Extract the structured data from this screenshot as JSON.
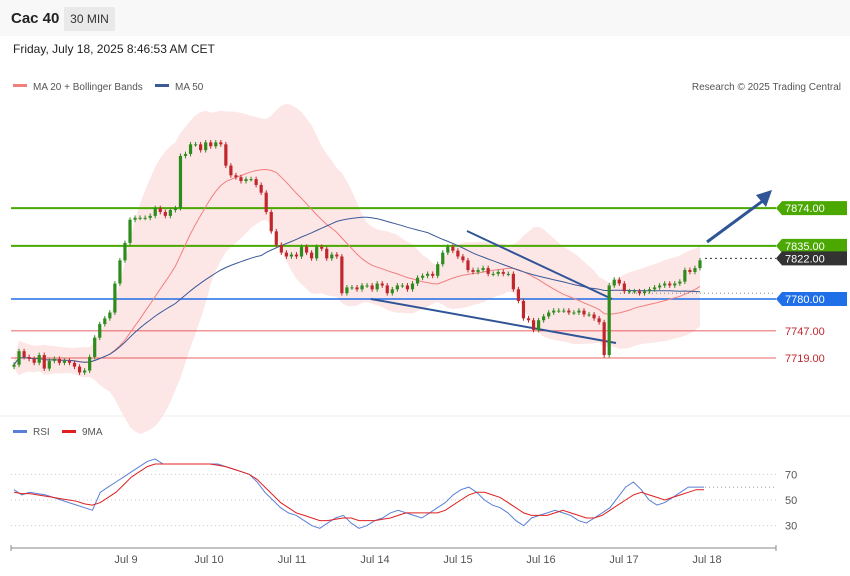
{
  "header": {
    "instrument": "Cac 40",
    "interval": "30 MIN",
    "datetime": "Friday, July 18, 2025 8:46:53 AM CET"
  },
  "legend": {
    "ma20": "MA 20 + Bollinger Bands",
    "ma50": "MA 50",
    "rsi": "RSI",
    "rsi_ma": "9MA",
    "credit": "Research © 2025 Trading Central"
  },
  "colors": {
    "ma20": "#f08080",
    "ma50": "#3a5a98",
    "bollinger_fill": "#fde2e2",
    "green_level": "#4aa800",
    "blue_level": "#1e6fe8",
    "red_level": "#e03030",
    "last_price": "#333333",
    "candle_up": "#2e8b1e",
    "candle_down": "#c0272d",
    "trendline": "#2f5597",
    "rsi": "#5a7fd6",
    "rsi_ma": "#e02020"
  },
  "chart_data": {
    "type": "candlestick",
    "ylim": [
      7660,
      7990
    ],
    "x_ticks": [
      "Jul 9",
      "Jul 10",
      "Jul 11",
      "Jul 14",
      "Jul 15",
      "Jul 16",
      "Jul 17",
      "Jul 18"
    ],
    "levels": [
      {
        "price": 7874.0,
        "label": "7874.00",
        "kind": "resistance",
        "color": "green"
      },
      {
        "price": 7835.0,
        "label": "7835.00",
        "kind": "resistance",
        "color": "green"
      },
      {
        "price": 7822.0,
        "label": "7822.00",
        "kind": "last_price",
        "color": "dark"
      },
      {
        "price": 7780.0,
        "label": "7780.00",
        "kind": "pivot",
        "color": "blue"
      },
      {
        "price": 7747.0,
        "label": "7747.00",
        "kind": "support",
        "color": "red"
      },
      {
        "price": 7719.0,
        "label": "7719.00",
        "kind": "support",
        "color": "red"
      }
    ],
    "closes": [
      7712,
      7726,
      7720,
      7718,
      7714,
      7722,
      7708,
      7716,
      7718,
      7714,
      7716,
      7714,
      7710,
      7704,
      7706,
      7720,
      7740,
      7754,
      7760,
      7766,
      7796,
      7820,
      7838,
      7862,
      7864,
      7864,
      7864,
      7866,
      7874,
      7870,
      7866,
      7872,
      7874,
      7928,
      7930,
      7940,
      7940,
      7934,
      7942,
      7938,
      7942,
      7940,
      7918,
      7908,
      7906,
      7902,
      7904,
      7904,
      7898,
      7890,
      7870,
      7850,
      7836,
      7828,
      7824,
      7826,
      7824,
      7834,
      7828,
      7822,
      7834,
      7832,
      7822,
      7826,
      7824,
      7786,
      7792,
      7792,
      7790,
      7794,
      7794,
      7790,
      7796,
      7794,
      7786,
      7790,
      7794,
      7794,
      7790,
      7796,
      7802,
      7804,
      7806,
      7804,
      7816,
      7828,
      7834,
      7830,
      7824,
      7820,
      7810,
      7808,
      7810,
      7812,
      7806,
      7806,
      7808,
      7806,
      7806,
      7790,
      7778,
      7760,
      7758,
      7748,
      7758,
      7762,
      7766,
      7768,
      7768,
      7768,
      7766,
      7766,
      7768,
      7764,
      7764,
      7760,
      7756,
      7722,
      7794,
      7800,
      7796,
      7788,
      7788,
      7788,
      7786,
      7788,
      7790,
      7792,
      7794,
      7796,
      7794,
      7796,
      7798,
      7810,
      7808,
      7812,
      7820
    ],
    "rsi": {
      "ylim": [
        15,
        85
      ],
      "ticks": [
        70,
        50,
        30
      ],
      "rsi_values": [
        58,
        54,
        56,
        55,
        54,
        52,
        50,
        48,
        46,
        44,
        42,
        56,
        60,
        64,
        68,
        72,
        76,
        80,
        82,
        78,
        78,
        78,
        78,
        78,
        78,
        78,
        78,
        76,
        74,
        72,
        70,
        64,
        56,
        50,
        44,
        40,
        38,
        34,
        30,
        28,
        32,
        36,
        38,
        32,
        28,
        30,
        34,
        36,
        40,
        42,
        40,
        38,
        36,
        40,
        44,
        48,
        54,
        58,
        60,
        56,
        50,
        46,
        44,
        40,
        34,
        30,
        36,
        38,
        40,
        42,
        40,
        38,
        34,
        32,
        36,
        40,
        44,
        52,
        60,
        64,
        58,
        50,
        46,
        48,
        52,
        56,
        60,
        60,
        60
      ],
      "ma_values": [
        56,
        55,
        55,
        54,
        53,
        52,
        51,
        50,
        49,
        47,
        46,
        48,
        52,
        56,
        62,
        68,
        72,
        76,
        78,
        78,
        78,
        78,
        78,
        78,
        78,
        78,
        77,
        76,
        74,
        72,
        70,
        66,
        60,
        54,
        48,
        44,
        40,
        38,
        36,
        34,
        34,
        35,
        36,
        36,
        34,
        34,
        34,
        35,
        36,
        38,
        40,
        40,
        40,
        40,
        40,
        42,
        46,
        50,
        54,
        56,
        56,
        54,
        52,
        48,
        44,
        40,
        38,
        38,
        38,
        40,
        42,
        40,
        38,
        36,
        36,
        38,
        42,
        46,
        50,
        54,
        56,
        54,
        52,
        50,
        52,
        54,
        56,
        58,
        58
      ]
    }
  }
}
